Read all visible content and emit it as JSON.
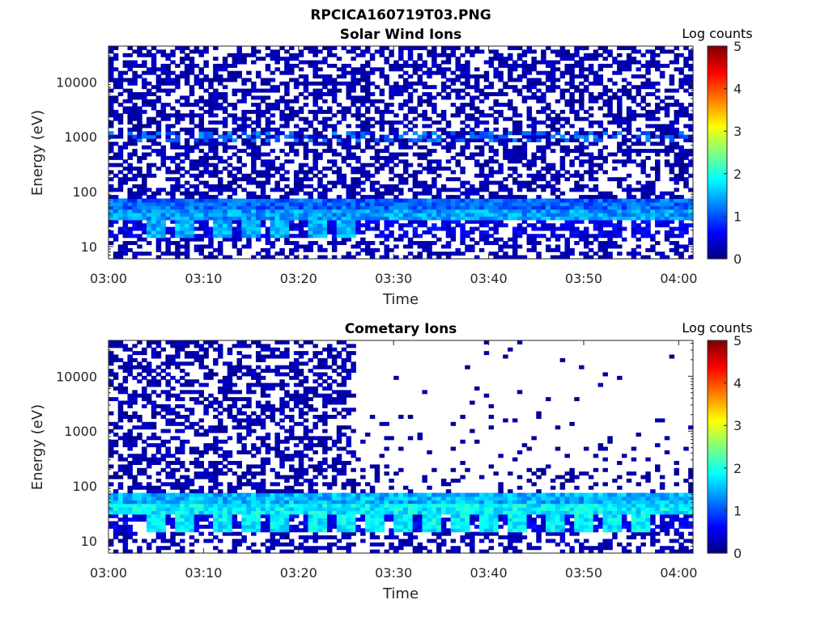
{
  "figure": {
    "title": "RPCICA160719T03.PNG"
  },
  "colors": {
    "jet": [
      "#00007f",
      "#0000ff",
      "#007fff",
      "#00ffff",
      "#7fff7f",
      "#ffff00",
      "#ff7f00",
      "#ff0000",
      "#7f0000"
    ],
    "axis": "#262626"
  },
  "chart_data": [
    {
      "type": "heatmap",
      "title": "Solar Wind Ions",
      "xlabel": "Time",
      "ylabel": "Energy (eV)",
      "x_ticks": [
        "03:00",
        "03:10",
        "03:20",
        "03:30",
        "03:40",
        "03:50",
        "04:00"
      ],
      "x_range_minutes": [
        0,
        61.5
      ],
      "y_scale": "log",
      "y_ticks": [
        "10",
        "100",
        "1000",
        "10000"
      ],
      "y_range_ev": [
        6,
        45000
      ],
      "colorbar": {
        "label": "Log counts",
        "ticks": [
          "0",
          "1",
          "2",
          "3",
          "4",
          "5"
        ],
        "range": [
          0,
          5
        ]
      },
      "pattern": {
        "high_energy_fill": 0.5,
        "high_energy_cutoff_minute": 61.5,
        "band_1000ev_level": 0.9,
        "band_40ev_level": 1.1,
        "band_20ev_level": 1.5,
        "peaks_20ev_minutes": [
          5,
          8,
          12,
          15,
          18,
          22,
          25
        ]
      }
    },
    {
      "type": "heatmap",
      "title": "Cometary Ions",
      "xlabel": "Time",
      "ylabel": "Energy (eV)",
      "x_ticks": [
        "03:00",
        "03:10",
        "03:20",
        "03:30",
        "03:40",
        "03:50",
        "04:00"
      ],
      "x_range_minutes": [
        0,
        61.5
      ],
      "y_scale": "log",
      "y_ticks": [
        "10",
        "100",
        "1000",
        "10000"
      ],
      "y_range_ev": [
        6,
        45000
      ],
      "colorbar": {
        "label": "Log counts",
        "ticks": [
          "0",
          "1",
          "2",
          "3",
          "4",
          "5"
        ],
        "range": [
          0,
          5
        ]
      },
      "pattern": {
        "high_energy_fill": 0.5,
        "high_energy_cutoff_minute": 25.8,
        "band_40ev_level": 1.5,
        "band_20ev_level": 1.8,
        "peaks_20ev_minutes": [
          5,
          8,
          12,
          15,
          18,
          22,
          25,
          28,
          31,
          34,
          37,
          40,
          43,
          47,
          50,
          53,
          56
        ]
      }
    }
  ]
}
